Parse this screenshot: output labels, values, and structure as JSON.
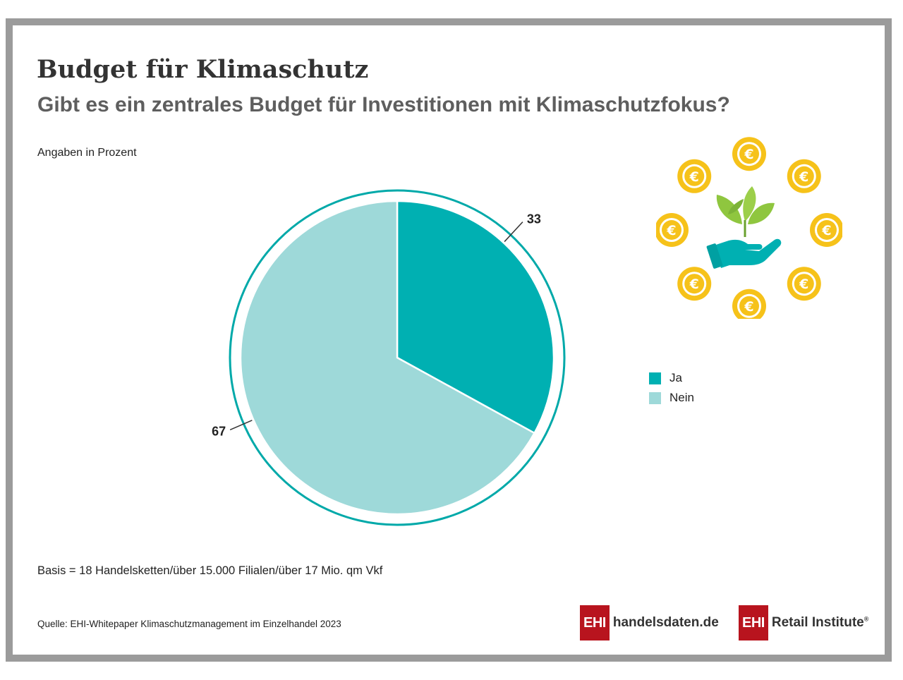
{
  "title": "Budget für Klimaschutz",
  "subtitle": "Gibt es ein zentrales Budget für Investitionen mit Klimaschutzfokus?",
  "units_note": "Angaben in Prozent",
  "basis": "Basis = 18 Handelsketten/über 15.000 Filialen/über 17 Mio. qm Vkf",
  "source": "Quelle: EHI-Whitepaper Klimaschutzmanagement im Einzelhandel 2023",
  "logos": {
    "handelsdaten_box": "EHI",
    "handelsdaten_text": "handelsdaten.de",
    "retail_box": "EHI",
    "retail_text": "Retail Institute",
    "retail_mark": "®"
  },
  "illustration": {
    "coin_symbol": "€",
    "icons": [
      "euro-coin-icon",
      "plant-in-hand-icon"
    ]
  },
  "colors": {
    "ja": "#00b0b2",
    "nein": "#9ed9d9",
    "ring": "#00a9a9",
    "coin": "#f6c21a",
    "leaf": "#8fc63f",
    "hand": "#00b0b2",
    "logo_red": "#b8141e",
    "frame": "#9b9b9b"
  },
  "chart_data": {
    "type": "pie",
    "categories": [
      "Ja",
      "Nein"
    ],
    "values": [
      33,
      67
    ],
    "data_labels": [
      "33",
      "67"
    ],
    "legend_position": "right"
  }
}
